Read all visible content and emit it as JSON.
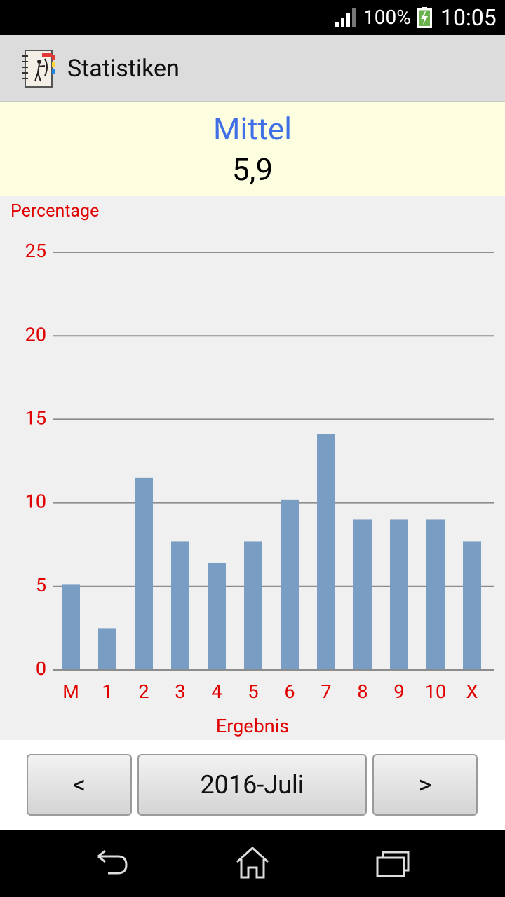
{
  "status_bar": {
    "battery_percent": "100%",
    "time": "10:05"
  },
  "action_bar": {
    "app_icon": "archery-notebook-icon",
    "title": "Statistiken"
  },
  "summary": {
    "label": "Mittel",
    "value": "5,9"
  },
  "chart_data": {
    "type": "bar",
    "title": "",
    "ylabel": "Percentage",
    "xlabel": "Ergebnis",
    "categories": [
      "M",
      "1",
      "2",
      "3",
      "4",
      "5",
      "6",
      "7",
      "8",
      "9",
      "10",
      "X"
    ],
    "values": [
      5.1,
      2.5,
      11.5,
      7.7,
      6.4,
      7.7,
      10.2,
      14.1,
      9.0,
      9.0,
      9.0,
      7.7
    ],
    "ylim": [
      0,
      25
    ],
    "yticks": [
      0,
      5,
      10,
      15,
      20,
      25
    ],
    "grid": true,
    "legend": "none",
    "colors": {
      "bar": "#7a9dc4",
      "axis_text": "#e00000",
      "grid": "#8c8c8c"
    }
  },
  "navigation": {
    "prev_label": "<",
    "period_label": "2016-Juli",
    "next_label": ">"
  },
  "system_bar": {
    "back_icon": "back-icon",
    "home_icon": "home-icon",
    "recents_icon": "recents-icon"
  }
}
